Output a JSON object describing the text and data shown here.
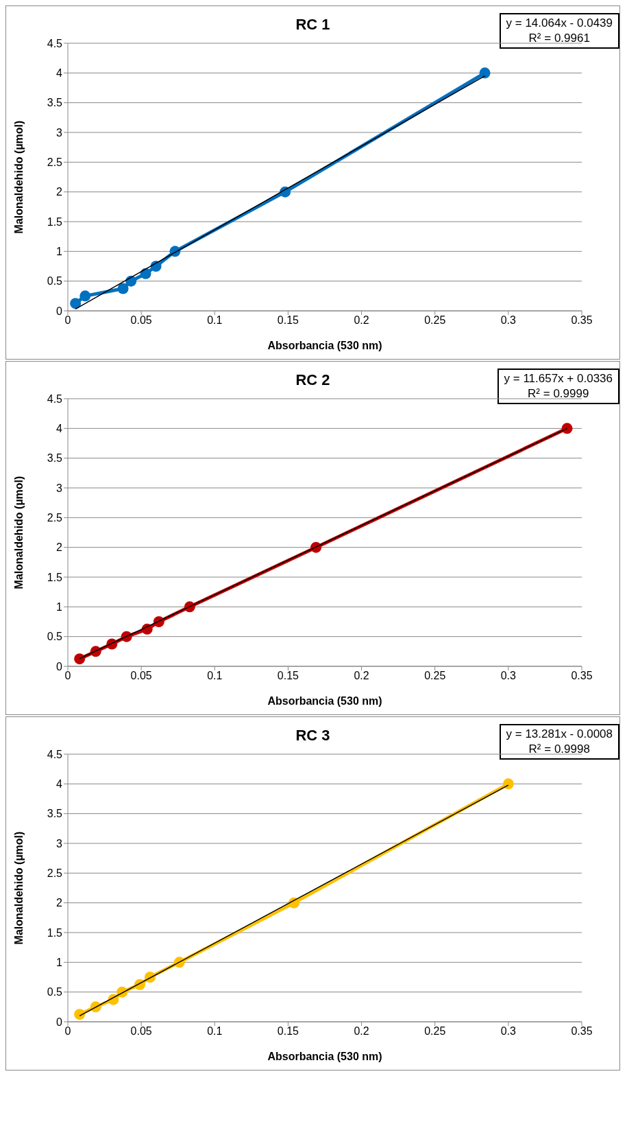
{
  "chart_data": [
    {
      "type": "line",
      "title": "RC 1",
      "xlabel": "Absorbancia (530 nm)",
      "ylabel": "Malonaldehido (µmol)",
      "xlim": [
        0,
        0.35
      ],
      "xticks": [
        0,
        0.05,
        0.1,
        0.15,
        0.2,
        0.25,
        0.3,
        0.35
      ],
      "ylim": [
        0,
        4.5
      ],
      "yticks": [
        0,
        0.5,
        1,
        1.5,
        2,
        2.5,
        3,
        3.5,
        4,
        4.5
      ],
      "grid": "y",
      "annotations": [
        "y = 14.064x - 0.0439",
        "R² = 0.9961"
      ],
      "series": [
        {
          "type": "line",
          "color": "#0070c0",
          "marker": "circle",
          "x": [
            0.0052,
            0.0118,
            0.0376,
            0.043,
            0.053,
            0.06,
            0.073,
            0.148,
            0.284
          ],
          "values": [
            0.125,
            0.25,
            0.375,
            0.5,
            0.625,
            0.75,
            1,
            2,
            4
          ]
        },
        {
          "type": "line",
          "color": "#000000",
          "marker": "none",
          "x": [
            0.0052,
            0.284
          ],
          "values": [
            0.03,
            3.95
          ]
        }
      ]
    },
    {
      "type": "line",
      "title": "RC 2",
      "xlabel": "Absorbancia (530 nm)",
      "ylabel": "Malonaldehido (µmol)",
      "xlim": [
        0,
        0.35
      ],
      "xticks": [
        0,
        0.05,
        0.1,
        0.15,
        0.2,
        0.25,
        0.3,
        0.35
      ],
      "ylim": [
        0,
        4.5
      ],
      "yticks": [
        0,
        0.5,
        1,
        1.5,
        2,
        2.5,
        3,
        3.5,
        4,
        4.5
      ],
      "grid": "y",
      "annotations": [
        "y = 11.657x + 0.0336",
        "R² = 0.9999"
      ],
      "series": [
        {
          "type": "line",
          "color": "#c00000",
          "marker": "circle",
          "x": [
            0.008,
            0.019,
            0.03,
            0.04,
            0.054,
            0.062,
            0.083,
            0.169,
            0.34
          ],
          "values": [
            0.125,
            0.25,
            0.375,
            0.5,
            0.625,
            0.75,
            1,
            2,
            4
          ]
        },
        {
          "type": "line",
          "color": "#000000",
          "marker": "none",
          "x": [
            0.008,
            0.34
          ],
          "values": [
            0.13,
            4
          ]
        }
      ]
    },
    {
      "type": "line",
      "title": "RC 3",
      "xlabel": "Absorbancia (530 nm)",
      "ylabel": "Malonaldehido (µmol)",
      "xlim": [
        0,
        0.35
      ],
      "xticks": [
        0,
        0.05,
        0.1,
        0.15,
        0.2,
        0.25,
        0.3,
        0.35
      ],
      "ylim": [
        0,
        4.5
      ],
      "yticks": [
        0,
        0.5,
        1,
        1.5,
        2,
        2.5,
        3,
        3.5,
        4,
        4.5
      ],
      "grid": "y",
      "annotations": [
        "y = 13.281x - 0.0008",
        "R² = 0.9998"
      ],
      "series": [
        {
          "type": "line",
          "color": "#ffc000",
          "marker": "circle",
          "x": [
            0.008,
            0.019,
            0.031,
            0.037,
            0.049,
            0.056,
            0.076,
            0.154,
            0.3
          ],
          "values": [
            0.125,
            0.25,
            0.375,
            0.5,
            0.625,
            0.75,
            1,
            2,
            4
          ]
        },
        {
          "type": "line",
          "color": "#000000",
          "marker": "none",
          "x": [
            0.008,
            0.3
          ],
          "values": [
            0.1,
            3.98
          ]
        }
      ]
    }
  ]
}
